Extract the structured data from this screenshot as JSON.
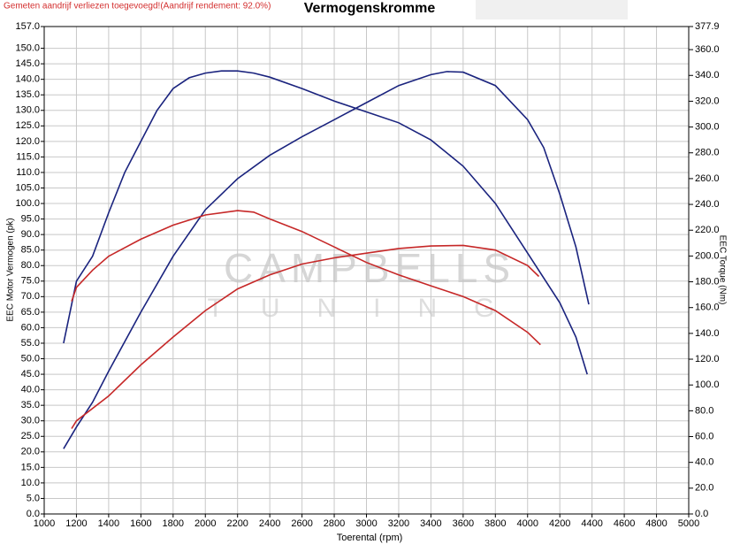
{
  "chart_data": {
    "type": "line",
    "title": "Vermogenskromme",
    "notice": "Gemeten aandrijf verliezen toegevoegd!(Aandrijf rendement: 92.0%)",
    "watermark": [
      "CAMPBELLS",
      "TUNING"
    ],
    "xlabel": "Toerental (rpm)",
    "ylabel": "EEC Motor Vermogen (pk)",
    "y2label": "EEC Torque (Nm)",
    "xlim": [
      1000,
      5000
    ],
    "xticks": [
      1000,
      1200,
      1400,
      1600,
      1800,
      2000,
      2200,
      2400,
      2600,
      2800,
      3000,
      3200,
      3400,
      3600,
      3800,
      4000,
      4200,
      4400,
      4600,
      4800,
      5000
    ],
    "ylim": [
      0,
      157
    ],
    "yticks": [
      {
        "value": 0,
        "label": "0.0"
      },
      {
        "value": 5,
        "label": "5.0"
      },
      {
        "value": 10,
        "label": "10.0"
      },
      {
        "value": 15,
        "label": "15.0"
      },
      {
        "value": 20,
        "label": "20.0"
      },
      {
        "value": 25,
        "label": "25.0"
      },
      {
        "value": 30,
        "label": "30.0"
      },
      {
        "value": 35,
        "label": "35.0"
      },
      {
        "value": 40,
        "label": "40.0"
      },
      {
        "value": 45,
        "label": "45.0"
      },
      {
        "value": 50,
        "label": "50.0"
      },
      {
        "value": 55,
        "label": "55.0"
      },
      {
        "value": 60,
        "label": "60.0"
      },
      {
        "value": 65,
        "label": "65.0"
      },
      {
        "value": 70,
        "label": "70.0"
      },
      {
        "value": 75,
        "label": "75.0"
      },
      {
        "value": 80,
        "label": "80.0"
      },
      {
        "value": 85,
        "label": "85.0"
      },
      {
        "value": 90,
        "label": "90.0"
      },
      {
        "value": 95,
        "label": "95.0"
      },
      {
        "value": 100,
        "label": "100.0"
      },
      {
        "value": 105,
        "label": "105.0"
      },
      {
        "value": 110,
        "label": "110.0"
      },
      {
        "value": 115,
        "label": "115.0"
      },
      {
        "value": 120,
        "label": "120.0"
      },
      {
        "value": 125,
        "label": "125.0"
      },
      {
        "value": 130,
        "label": "130.0"
      },
      {
        "value": 135,
        "label": "135.0"
      },
      {
        "value": 140,
        "label": "140.0"
      },
      {
        "value": 145,
        "label": "145.0"
      },
      {
        "value": 150,
        "label": "150.0"
      },
      {
        "value": 157,
        "label": "157.0"
      }
    ],
    "y2lim": [
      0,
      377.9
    ],
    "y2ticks": [
      {
        "value": 0,
        "label": "0.0"
      },
      {
        "value": 20,
        "label": "20.0"
      },
      {
        "value": 40,
        "label": "40.0"
      },
      {
        "value": 60,
        "label": "60.0"
      },
      {
        "value": 80,
        "label": "80.0"
      },
      {
        "value": 100,
        "label": "100.0"
      },
      {
        "value": 120,
        "label": "120.0"
      },
      {
        "value": 140,
        "label": "140.0"
      },
      {
        "value": 160,
        "label": "160.0"
      },
      {
        "value": 180,
        "label": "180.0"
      },
      {
        "value": 200,
        "label": "200.0"
      },
      {
        "value": 220,
        "label": "220.0"
      },
      {
        "value": 240,
        "label": "240.0"
      },
      {
        "value": 260,
        "label": "260.0"
      },
      {
        "value": 280,
        "label": "280.0"
      },
      {
        "value": 300,
        "label": "300.0"
      },
      {
        "value": 320,
        "label": "320.0"
      },
      {
        "value": 340,
        "label": "340.0"
      },
      {
        "value": 360,
        "label": "360.0"
      },
      {
        "value": 377.9,
        "label": "377.9"
      }
    ],
    "grid": true,
    "series": [
      {
        "color": "#1a237e",
        "axis": "y",
        "x": [
          1120,
          1200,
          1300,
          1400,
          1600,
          1800,
          2000,
          2200,
          2400,
          2600,
          2800,
          3000,
          3200,
          3400,
          3500,
          3600,
          3800,
          4000,
          4100,
          4200,
          4300,
          4380
        ],
        "values": [
          21,
          28,
          36,
          46,
          65,
          83,
          98,
          108,
          115.5,
          121.5,
          127,
          132.5,
          138,
          141.5,
          142.5,
          142.3,
          138,
          127,
          118,
          103,
          86,
          67.5
        ]
      },
      {
        "color": "#1a237e",
        "axis": "y2",
        "x": [
          1120,
          1200,
          1300,
          1400,
          1500,
          1600,
          1700,
          1800,
          1900,
          2000,
          2100,
          2200,
          2300,
          2400,
          2600,
          2800,
          3000,
          3200,
          3400,
          3600,
          3800,
          4000,
          4200,
          4300,
          4370
        ],
        "values": [
          132.4,
          180.5,
          199.8,
          233.5,
          264.8,
          288.8,
          312.9,
          329.8,
          338.2,
          341.8,
          343.5,
          343.5,
          341.8,
          338.7,
          329.8,
          320.1,
          311.7,
          303.3,
          290.0,
          269.6,
          240.7,
          202.2,
          163.7,
          137.2,
          108.3
        ]
      },
      {
        "color": "#c62828",
        "axis": "y",
        "x": [
          1170,
          1200,
          1400,
          1600,
          1800,
          2000,
          2200,
          2400,
          2600,
          2800,
          3000,
          3200,
          3400,
          3600,
          3800,
          4000,
          4070
        ],
        "values": [
          27.5,
          30,
          38,
          48,
          57,
          65.5,
          72.5,
          77,
          80.5,
          82.5,
          84,
          85.5,
          86.3,
          86.5,
          85,
          80,
          76.5
        ]
      },
      {
        "color": "#c62828",
        "axis": "y2",
        "x": [
          1170,
          1200,
          1300,
          1400,
          1600,
          1800,
          2000,
          2200,
          2300,
          2400,
          2600,
          2800,
          3000,
          3200,
          3400,
          3600,
          3800,
          4000,
          4080
        ],
        "values": [
          164.9,
          175.7,
          189,
          199.8,
          213,
          223.9,
          231.8,
          235.2,
          234,
          228.7,
          219,
          207,
          195,
          185.3,
          176.9,
          168.5,
          157.7,
          140.8,
          131.2
        ]
      }
    ]
  }
}
